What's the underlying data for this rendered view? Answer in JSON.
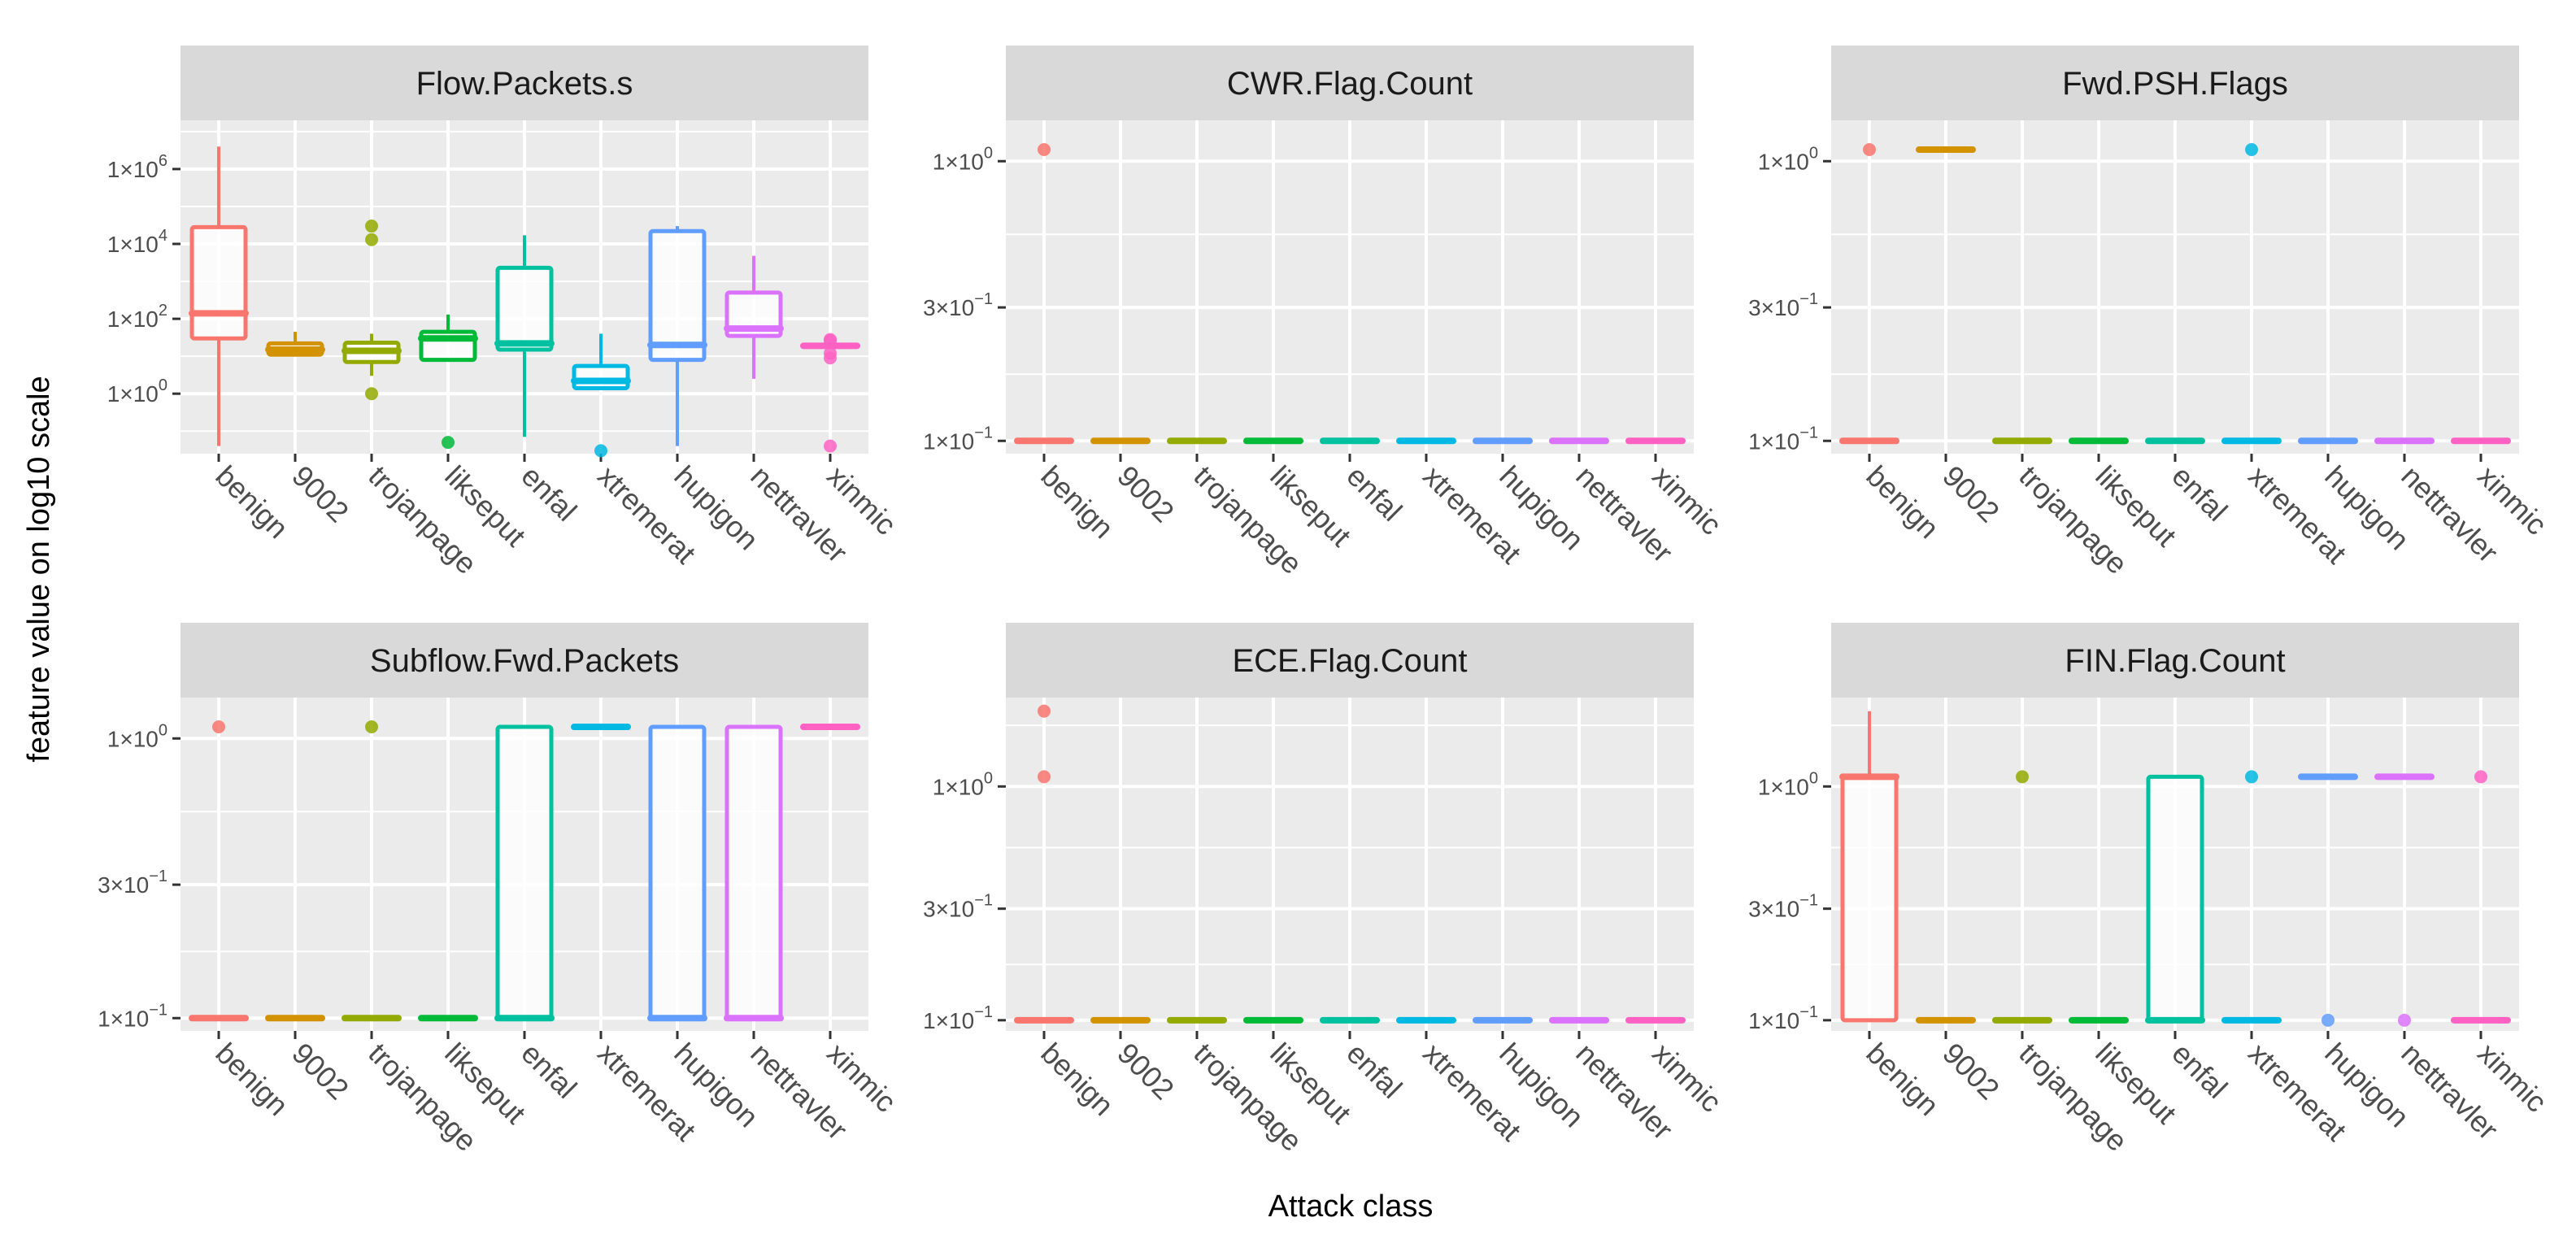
{
  "xlabel": "Attack class",
  "ylabel": "feature value on log10 scale",
  "categories": [
    "benign",
    "9002",
    "trojanpage",
    "likseput",
    "enfal",
    "xtremerat",
    "hupigon",
    "nettravler",
    "xinmic"
  ],
  "colors": [
    "#F8766D",
    "#D39200",
    "#93AA00",
    "#00BA38",
    "#00C19F",
    "#00B9E3",
    "#619CFF",
    "#DB72FB",
    "#FF61C3"
  ],
  "chart_data": [
    {
      "type": "boxplot",
      "title": "Flow.Packets.s",
      "scale": "log10",
      "ylim": [
        0.025,
        20000000
      ],
      "ticks": [
        {
          "value": 1,
          "mant": "1",
          "exp": "0"
        },
        {
          "value": 100,
          "mant": "1",
          "exp": "2"
        },
        {
          "value": 10000,
          "mant": "1",
          "exp": "4"
        },
        {
          "value": 1000000,
          "mant": "1",
          "exp": "6"
        }
      ],
      "boxes": [
        {
          "q1": 30,
          "median": 140,
          "q3": 28000,
          "whislo": 0.04,
          "whishi": 4000000,
          "outliers": []
        },
        {
          "q1": 11,
          "median": 15,
          "q3": 22,
          "whislo": 10,
          "whishi": 45,
          "outliers": []
        },
        {
          "q1": 7,
          "median": 14,
          "q3": 23,
          "whislo": 3,
          "whishi": 40,
          "outliers": [
            1,
            13000,
            30000
          ]
        },
        {
          "q1": 8,
          "median": 30,
          "q3": 45,
          "whislo": 8,
          "whishi": 130,
          "outliers": [
            0.05
          ]
        },
        {
          "q1": 15,
          "median": 22,
          "q3": 2300,
          "whislo": 0.07,
          "whishi": 17000,
          "outliers": []
        },
        {
          "q1": 1.4,
          "median": 2.2,
          "q3": 5.5,
          "whislo": 1.4,
          "whishi": 40,
          "outliers": [
            0.03
          ]
        },
        {
          "q1": 8,
          "median": 20,
          "q3": 22000,
          "whislo": 0.04,
          "whishi": 30000,
          "outliers": []
        },
        {
          "q1": 35,
          "median": 55,
          "q3": 500,
          "whislo": 2.5,
          "whishi": 4800,
          "outliers": []
        },
        {
          "q1": 18,
          "median": 19,
          "q3": 20,
          "whislo": 18,
          "whishi": 20,
          "outliers": [
            0.04,
            9,
            12,
            26,
            28
          ]
        }
      ]
    },
    {
      "type": "boxplot",
      "title": "CWR.Flag.Count",
      "scale": "log10",
      "ylim": [
        0.09,
        1.4
      ],
      "ticks": [
        {
          "value": 0.1,
          "mant": "1",
          "exp": "−1"
        },
        {
          "value": 0.3,
          "mant": "3",
          "exp": "−1"
        },
        {
          "value": 1,
          "mant": "1",
          "exp": "0"
        }
      ],
      "boxes": [
        {
          "q1": 0.1,
          "median": 0.1,
          "q3": 0.1,
          "whislo": 0.1,
          "whishi": 0.1,
          "outliers": [
            1.1
          ]
        },
        {
          "q1": 0.1,
          "median": 0.1,
          "q3": 0.1,
          "whislo": 0.1,
          "whishi": 0.1,
          "outliers": []
        },
        {
          "q1": 0.1,
          "median": 0.1,
          "q3": 0.1,
          "whislo": 0.1,
          "whishi": 0.1,
          "outliers": []
        },
        {
          "q1": 0.1,
          "median": 0.1,
          "q3": 0.1,
          "whislo": 0.1,
          "whishi": 0.1,
          "outliers": []
        },
        {
          "q1": 0.1,
          "median": 0.1,
          "q3": 0.1,
          "whislo": 0.1,
          "whishi": 0.1,
          "outliers": []
        },
        {
          "q1": 0.1,
          "median": 0.1,
          "q3": 0.1,
          "whislo": 0.1,
          "whishi": 0.1,
          "outliers": []
        },
        {
          "q1": 0.1,
          "median": 0.1,
          "q3": 0.1,
          "whislo": 0.1,
          "whishi": 0.1,
          "outliers": []
        },
        {
          "q1": 0.1,
          "median": 0.1,
          "q3": 0.1,
          "whislo": 0.1,
          "whishi": 0.1,
          "outliers": []
        },
        {
          "q1": 0.1,
          "median": 0.1,
          "q3": 0.1,
          "whislo": 0.1,
          "whishi": 0.1,
          "outliers": []
        }
      ]
    },
    {
      "type": "boxplot",
      "title": "Fwd.PSH.Flags",
      "scale": "log10",
      "ylim": [
        0.09,
        1.4
      ],
      "ticks": [
        {
          "value": 0.1,
          "mant": "1",
          "exp": "−1"
        },
        {
          "value": 0.3,
          "mant": "3",
          "exp": "−1"
        },
        {
          "value": 1,
          "mant": "1",
          "exp": "0"
        }
      ],
      "boxes": [
        {
          "q1": 0.1,
          "median": 0.1,
          "q3": 0.1,
          "whislo": 0.1,
          "whishi": 0.1,
          "outliers": [
            1.1
          ]
        },
        {
          "q1": 1.1,
          "median": 1.1,
          "q3": 1.1,
          "whislo": 1.1,
          "whishi": 1.1,
          "outliers": []
        },
        {
          "q1": 0.1,
          "median": 0.1,
          "q3": 0.1,
          "whislo": 0.1,
          "whishi": 0.1,
          "outliers": []
        },
        {
          "q1": 0.1,
          "median": 0.1,
          "q3": 0.1,
          "whislo": 0.1,
          "whishi": 0.1,
          "outliers": []
        },
        {
          "q1": 0.1,
          "median": 0.1,
          "q3": 0.1,
          "whislo": 0.1,
          "whishi": 0.1,
          "outliers": []
        },
        {
          "q1": 0.1,
          "median": 0.1,
          "q3": 0.1,
          "whislo": 0.1,
          "whishi": 0.1,
          "outliers": [
            1.1
          ]
        },
        {
          "q1": 0.1,
          "median": 0.1,
          "q3": 0.1,
          "whislo": 0.1,
          "whishi": 0.1,
          "outliers": []
        },
        {
          "q1": 0.1,
          "median": 0.1,
          "q3": 0.1,
          "whislo": 0.1,
          "whishi": 0.1,
          "outliers": []
        },
        {
          "q1": 0.1,
          "median": 0.1,
          "q3": 0.1,
          "whislo": 0.1,
          "whishi": 0.1,
          "outliers": []
        }
      ]
    },
    {
      "type": "boxplot",
      "title": "Subflow.Fwd.Packets",
      "scale": "log10",
      "ylim": [
        0.09,
        1.4
      ],
      "ticks": [
        {
          "value": 0.1,
          "mant": "1",
          "exp": "−1"
        },
        {
          "value": 0.3,
          "mant": "3",
          "exp": "−1"
        },
        {
          "value": 1,
          "mant": "1",
          "exp": "0"
        }
      ],
      "boxes": [
        {
          "q1": 0.1,
          "median": 0.1,
          "q3": 0.1,
          "whislo": 0.1,
          "whishi": 0.1,
          "outliers": [
            1.1
          ]
        },
        {
          "q1": 0.1,
          "median": 0.1,
          "q3": 0.1,
          "whislo": 0.1,
          "whishi": 0.1,
          "outliers": []
        },
        {
          "q1": 0.1,
          "median": 0.1,
          "q3": 0.1,
          "whislo": 0.1,
          "whishi": 0.1,
          "outliers": [
            1.1
          ]
        },
        {
          "q1": 0.1,
          "median": 0.1,
          "q3": 0.1,
          "whislo": 0.1,
          "whishi": 0.1,
          "outliers": []
        },
        {
          "q1": 0.1,
          "median": 0.1,
          "q3": 1.1,
          "whislo": 0.1,
          "whishi": 1.1,
          "outliers": []
        },
        {
          "q1": 1.1,
          "median": 1.1,
          "q3": 1.1,
          "whislo": 1.1,
          "whishi": 1.1,
          "outliers": []
        },
        {
          "q1": 0.1,
          "median": 0.1,
          "q3": 1.1,
          "whislo": 0.1,
          "whishi": 1.1,
          "outliers": []
        },
        {
          "q1": 0.1,
          "median": 0.1,
          "q3": 1.1,
          "whislo": 0.1,
          "whishi": 1.1,
          "outliers": []
        },
        {
          "q1": 1.1,
          "median": 1.1,
          "q3": 1.1,
          "whislo": 1.1,
          "whishi": 1.1,
          "outliers": []
        }
      ]
    },
    {
      "type": "boxplot",
      "title": "ECE.Flag.Count",
      "scale": "log10",
      "ylim": [
        0.09,
        2.4
      ],
      "ticks": [
        {
          "value": 0.1,
          "mant": "1",
          "exp": "−1"
        },
        {
          "value": 0.3,
          "mant": "3",
          "exp": "−1"
        },
        {
          "value": 1,
          "mant": "1",
          "exp": "0"
        }
      ],
      "boxes": [
        {
          "q1": 0.1,
          "median": 0.1,
          "q3": 0.1,
          "whislo": 0.1,
          "whishi": 0.1,
          "outliers": [
            1.1,
            2.1
          ]
        },
        {
          "q1": 0.1,
          "median": 0.1,
          "q3": 0.1,
          "whislo": 0.1,
          "whishi": 0.1,
          "outliers": []
        },
        {
          "q1": 0.1,
          "median": 0.1,
          "q3": 0.1,
          "whislo": 0.1,
          "whishi": 0.1,
          "outliers": []
        },
        {
          "q1": 0.1,
          "median": 0.1,
          "q3": 0.1,
          "whislo": 0.1,
          "whishi": 0.1,
          "outliers": []
        },
        {
          "q1": 0.1,
          "median": 0.1,
          "q3": 0.1,
          "whislo": 0.1,
          "whishi": 0.1,
          "outliers": []
        },
        {
          "q1": 0.1,
          "median": 0.1,
          "q3": 0.1,
          "whislo": 0.1,
          "whishi": 0.1,
          "outliers": []
        },
        {
          "q1": 0.1,
          "median": 0.1,
          "q3": 0.1,
          "whislo": 0.1,
          "whishi": 0.1,
          "outliers": []
        },
        {
          "q1": 0.1,
          "median": 0.1,
          "q3": 0.1,
          "whislo": 0.1,
          "whishi": 0.1,
          "outliers": []
        },
        {
          "q1": 0.1,
          "median": 0.1,
          "q3": 0.1,
          "whislo": 0.1,
          "whishi": 0.1,
          "outliers": []
        }
      ]
    },
    {
      "type": "boxplot",
      "title": "FIN.Flag.Count",
      "scale": "log10",
      "ylim": [
        0.09,
        2.4
      ],
      "ticks": [
        {
          "value": 0.1,
          "mant": "1",
          "exp": "−1"
        },
        {
          "value": 0.3,
          "mant": "3",
          "exp": "−1"
        },
        {
          "value": 1,
          "mant": "1",
          "exp": "0"
        }
      ],
      "boxes": [
        {
          "q1": 0.1,
          "median": 1.1,
          "q3": 1.1,
          "whislo": 0.1,
          "whishi": 2.1,
          "outliers": []
        },
        {
          "q1": 0.1,
          "median": 0.1,
          "q3": 0.1,
          "whislo": 0.1,
          "whishi": 0.1,
          "outliers": []
        },
        {
          "q1": 0.1,
          "median": 0.1,
          "q3": 0.1,
          "whislo": 0.1,
          "whishi": 0.1,
          "outliers": [
            1.1
          ]
        },
        {
          "q1": 0.1,
          "median": 0.1,
          "q3": 0.1,
          "whislo": 0.1,
          "whishi": 0.1,
          "outliers": []
        },
        {
          "q1": 0.1,
          "median": 0.1,
          "q3": 1.1,
          "whislo": 0.1,
          "whishi": 1.1,
          "outliers": []
        },
        {
          "q1": 0.1,
          "median": 0.1,
          "q3": 0.1,
          "whislo": 0.1,
          "whishi": 0.1,
          "outliers": [
            1.1
          ]
        },
        {
          "q1": 1.1,
          "median": 1.1,
          "q3": 1.1,
          "whislo": 1.1,
          "whishi": 1.1,
          "outliers": [
            0.1
          ]
        },
        {
          "q1": 1.1,
          "median": 1.1,
          "q3": 1.1,
          "whislo": 1.1,
          "whishi": 1.1,
          "outliers": [
            0.1
          ]
        },
        {
          "q1": 0.1,
          "median": 0.1,
          "q3": 0.1,
          "whislo": 0.1,
          "whishi": 0.1,
          "outliers": [
            1.1
          ]
        }
      ]
    }
  ]
}
